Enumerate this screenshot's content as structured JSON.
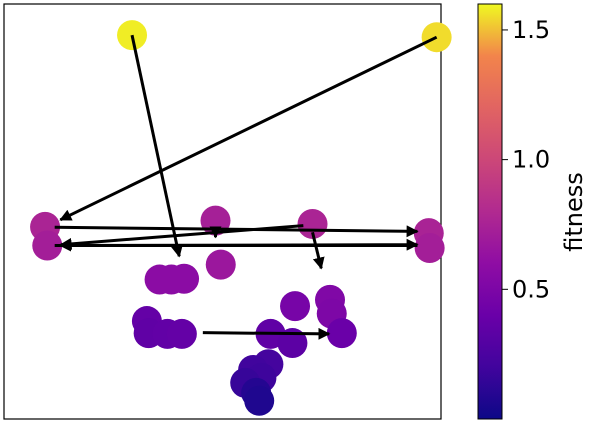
{
  "chart_data": {
    "type": "scatter",
    "title": "",
    "xlabel": "",
    "ylabel": "",
    "xlim": [
      0,
      1
    ],
    "ylim": [
      0,
      1
    ],
    "grid": false,
    "axes_ticks_visible": false,
    "colormap": "plasma",
    "colorbar": {
      "label": "fitness",
      "min": 0.0,
      "max": 1.6,
      "ticks": [
        {
          "value": 0.5,
          "label": "0.5"
        },
        {
          "value": 1.0,
          "label": "1.0"
        },
        {
          "value": 1.5,
          "label": "1.5"
        }
      ]
    },
    "points": [
      {
        "x": 0.293,
        "y": 0.925,
        "fitness": 1.58
      },
      {
        "x": 0.99,
        "y": 0.92,
        "fitness": 1.55
      },
      {
        "x": 0.094,
        "y": 0.463,
        "fitness": 0.76
      },
      {
        "x": 0.099,
        "y": 0.418,
        "fitness": 0.72
      },
      {
        "x": 0.484,
        "y": 0.478,
        "fitness": 0.73
      },
      {
        "x": 0.706,
        "y": 0.47,
        "fitness": 0.76
      },
      {
        "x": 0.972,
        "y": 0.448,
        "fitness": 0.75
      },
      {
        "x": 0.974,
        "y": 0.412,
        "fitness": 0.72
      },
      {
        "x": 0.496,
        "y": 0.372,
        "fitness": 0.67
      },
      {
        "x": 0.356,
        "y": 0.336,
        "fitness": 0.58
      },
      {
        "x": 0.383,
        "y": 0.336,
        "fitness": 0.58
      },
      {
        "x": 0.412,
        "y": 0.338,
        "fitness": 0.58
      },
      {
        "x": 0.746,
        "y": 0.287,
        "fitness": 0.52
      },
      {
        "x": 0.666,
        "y": 0.272,
        "fitness": 0.47
      },
      {
        "x": 0.75,
        "y": 0.254,
        "fitness": 0.5
      },
      {
        "x": 0.327,
        "y": 0.236,
        "fitness": 0.37
      },
      {
        "x": 0.331,
        "y": 0.207,
        "fitness": 0.35
      },
      {
        "x": 0.374,
        "y": 0.205,
        "fitness": 0.36
      },
      {
        "x": 0.407,
        "y": 0.205,
        "fitness": 0.37
      },
      {
        "x": 0.61,
        "y": 0.205,
        "fitness": 0.35
      },
      {
        "x": 0.773,
        "y": 0.207,
        "fitness": 0.4
      },
      {
        "x": 0.66,
        "y": 0.183,
        "fitness": 0.33
      },
      {
        "x": 0.605,
        "y": 0.132,
        "fitness": 0.22
      },
      {
        "x": 0.57,
        "y": 0.118,
        "fitness": 0.2
      },
      {
        "x": 0.589,
        "y": 0.099,
        "fitness": 0.19
      },
      {
        "x": 0.552,
        "y": 0.087,
        "fitness": 0.16
      },
      {
        "x": 0.577,
        "y": 0.063,
        "fitness": 0.09
      },
      {
        "x": 0.584,
        "y": 0.044,
        "fitness": 0.07
      }
    ],
    "arrows": [
      {
        "from": [
          0.99,
          0.92
        ],
        "to": [
          0.129,
          0.48
        ]
      },
      {
        "from": [
          0.293,
          0.925
        ],
        "to": [
          0.401,
          0.392
        ]
      },
      {
        "from": [
          0.116,
          0.462
        ],
        "to": [
          0.946,
          0.452
        ]
      },
      {
        "from": [
          0.116,
          0.418
        ],
        "to": [
          0.946,
          0.42
        ]
      },
      {
        "from": [
          0.946,
          0.418
        ],
        "to": [
          0.129,
          0.418
        ]
      },
      {
        "from": [
          0.685,
          0.466
        ],
        "to": [
          0.13,
          0.42
        ]
      },
      {
        "from": [
          0.484,
          0.46
        ],
        "to": [
          0.484,
          0.438
        ]
      },
      {
        "from": [
          0.706,
          0.45
        ],
        "to": [
          0.726,
          0.363
        ]
      },
      {
        "from": [
          0.455,
          0.208
        ],
        "to": [
          0.744,
          0.205
        ]
      }
    ]
  }
}
